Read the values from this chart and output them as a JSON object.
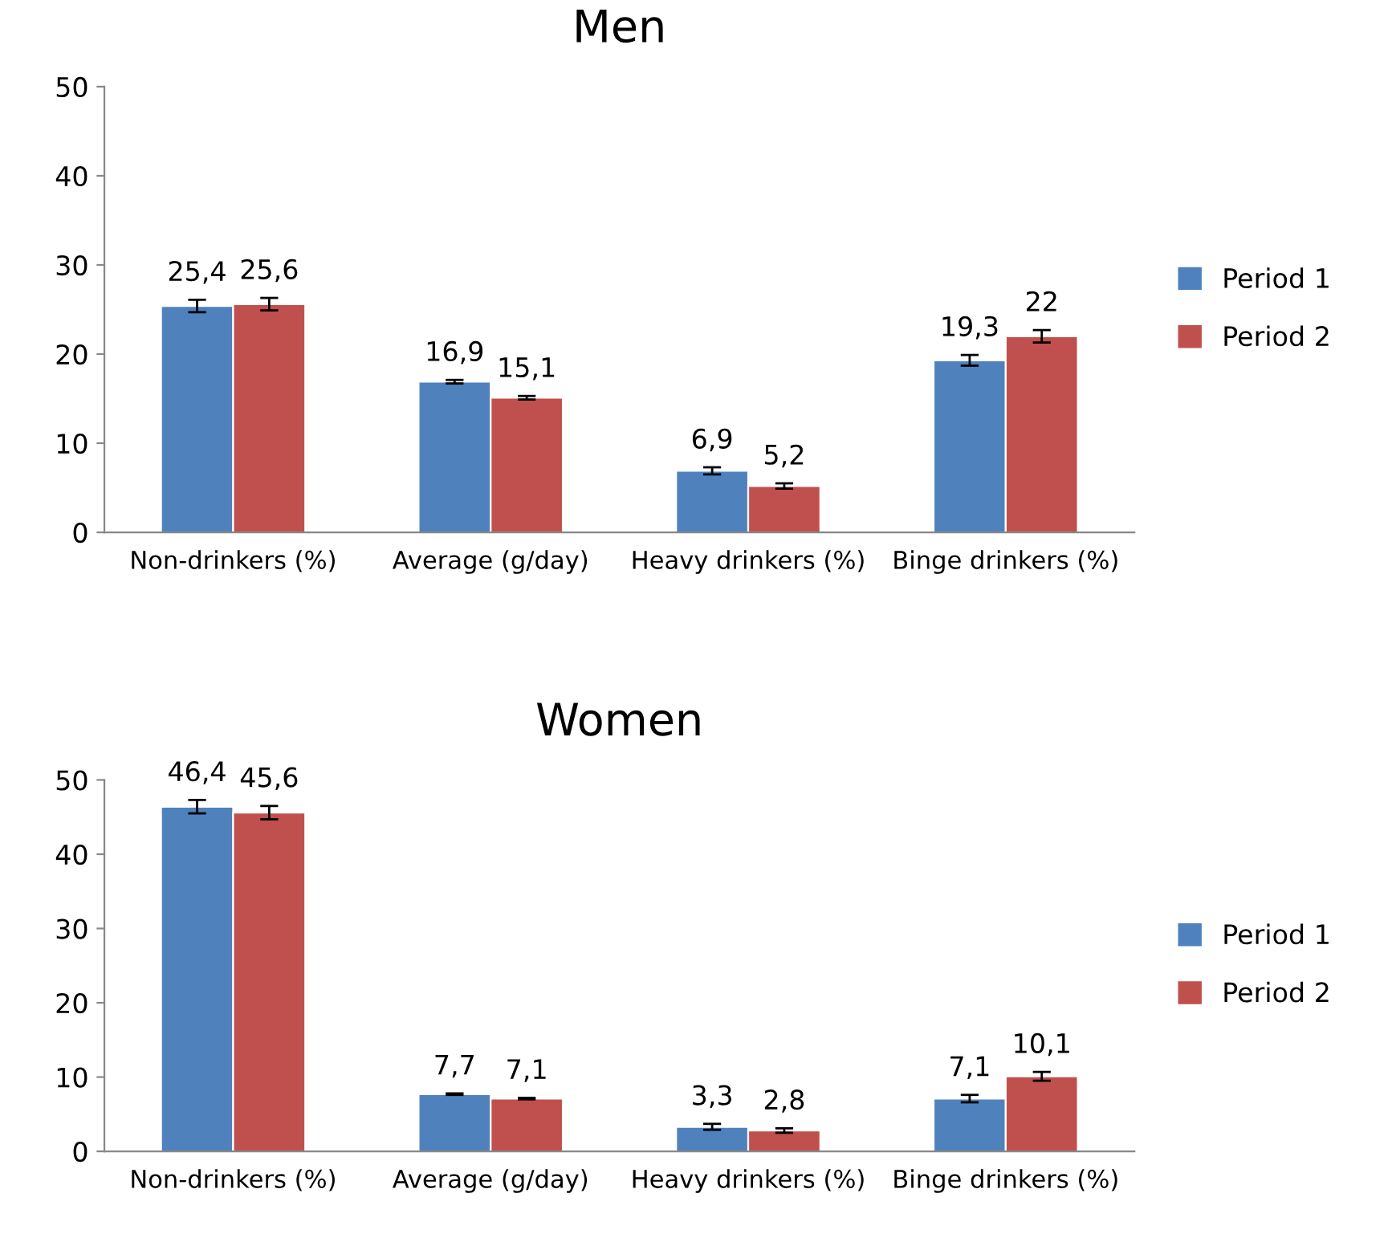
{
  "chart_data": [
    {
      "type": "bar",
      "title": "Men",
      "categories": [
        "Non-drinkers (%)",
        "Average (g/day)",
        "Heavy drinkers (%)",
        "Binge drinkers (%)"
      ],
      "ylim": [
        0,
        50
      ],
      "yticks": [
        0,
        10,
        20,
        30,
        40,
        50
      ],
      "grid": false,
      "legend": "right",
      "series": [
        {
          "name": "Period 1",
          "color": "#4f81bd",
          "values": [
            25.4,
            16.9,
            6.9,
            19.3
          ],
          "errors": [
            0.7,
            0.2,
            0.4,
            0.6
          ],
          "value_labels": [
            "25,4",
            "16,9",
            "6,9",
            "19,3"
          ]
        },
        {
          "name": "Period 2",
          "color": "#c0504d",
          "values": [
            25.6,
            15.1,
            5.2,
            22
          ],
          "errors": [
            0.7,
            0.2,
            0.3,
            0.7
          ],
          "value_labels": [
            "25,6",
            "15,1",
            "5,2",
            "22"
          ]
        }
      ]
    },
    {
      "type": "bar",
      "title": "Women",
      "categories": [
        "Non-drinkers (%)",
        "Average (g/day)",
        "Heavy drinkers (%)",
        "Binge drinkers (%)"
      ],
      "ylim": [
        0,
        50
      ],
      "yticks": [
        0,
        10,
        20,
        30,
        40,
        50
      ],
      "grid": false,
      "legend": "right",
      "series": [
        {
          "name": "Period 1",
          "color": "#4f81bd",
          "values": [
            46.4,
            7.7,
            3.3,
            7.1
          ],
          "errors": [
            0.9,
            0.1,
            0.4,
            0.5
          ],
          "value_labels": [
            "46,4",
            "7,7",
            "3,3",
            "7,1"
          ]
        },
        {
          "name": "Period 2",
          "color": "#c0504d",
          "values": [
            45.6,
            7.1,
            2.8,
            10.1
          ],
          "errors": [
            0.9,
            0.1,
            0.3,
            0.6
          ],
          "value_labels": [
            "45,6",
            "7,1",
            "2,8",
            "10,1"
          ]
        }
      ]
    }
  ]
}
